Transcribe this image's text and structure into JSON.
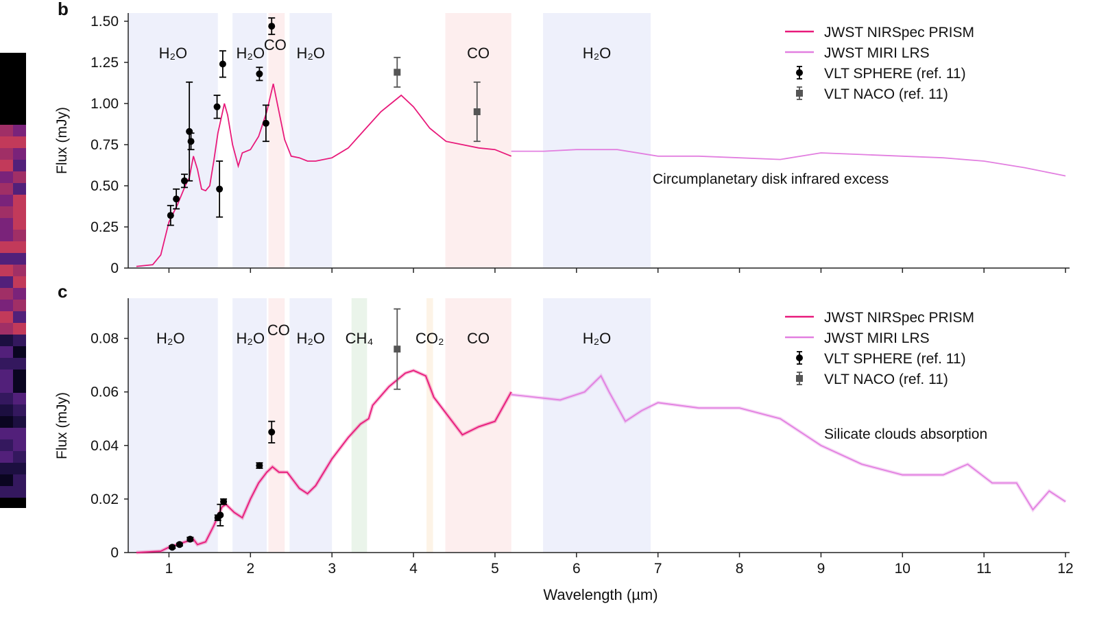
{
  "axis_label_x": "Wavelength (µm)",
  "colors": {
    "nirspec": "#e8197a",
    "miri": "#e27fe0",
    "sphere": "#000000",
    "naco": "#555555",
    "H2O": "#eef0fb",
    "CO": "#fdeeee",
    "CH4": "#eaf4ea",
    "CO2": "#fdf3e6"
  },
  "chart_data": [
    {
      "type": "line",
      "panel_label": "b",
      "ylabel": "Flux (mJy)",
      "xlim": [
        0.5,
        12.05
      ],
      "ylim": [
        0,
        1.55
      ],
      "xticks": [
        1,
        2,
        3,
        4,
        5,
        6,
        7,
        8,
        9,
        10,
        11,
        12
      ],
      "yticks": [
        0,
        0.25,
        0.5,
        0.75,
        1.0,
        1.25,
        1.5
      ],
      "ytick_labels": [
        "0",
        "0.25",
        "0.50",
        "0.75",
        "1.00",
        "1.25",
        "1.50"
      ],
      "show_xtick_labels": false,
      "bands": [
        {
          "species": "H2O",
          "label": "H₂O",
          "range": [
            0.5,
            1.6
          ]
        },
        {
          "species": "H2O",
          "label": "H₂O",
          "range": [
            1.78,
            2.2
          ]
        },
        {
          "species": "CO",
          "label": "CO",
          "range": [
            2.22,
            2.42
          ]
        },
        {
          "species": "H2O",
          "label": "H₂O",
          "range": [
            2.48,
            3.0
          ]
        },
        {
          "species": "CO",
          "label": "CO",
          "range": [
            4.39,
            5.2
          ]
        },
        {
          "species": "H2O",
          "label": "H₂O",
          "range": [
            5.59,
            6.91
          ]
        }
      ],
      "annotation": "Circumplanetary disk infrared excess",
      "legend": {
        "placement": "top-right",
        "entries": [
          "JWST NIRSpec PRISM",
          "JWST MIRI LRS",
          "VLT SPHERE (ref. 11)",
          "VLT NACO (ref. 11)"
        ]
      },
      "series": [
        {
          "name": "JWST NIRSpec PRISM",
          "kind": "line",
          "points": [
            [
              0.6,
              0.01
            ],
            [
              0.8,
              0.02
            ],
            [
              0.9,
              0.08
            ],
            [
              1.0,
              0.28
            ],
            [
              1.1,
              0.38
            ],
            [
              1.2,
              0.5
            ],
            [
              1.25,
              0.55
            ],
            [
              1.3,
              0.68
            ],
            [
              1.35,
              0.6
            ],
            [
              1.4,
              0.48
            ],
            [
              1.45,
              0.47
            ],
            [
              1.5,
              0.5
            ],
            [
              1.55,
              0.65
            ],
            [
              1.6,
              0.82
            ],
            [
              1.68,
              1.0
            ],
            [
              1.72,
              0.93
            ],
            [
              1.78,
              0.75
            ],
            [
              1.85,
              0.62
            ],
            [
              1.9,
              0.7
            ],
            [
              2.0,
              0.72
            ],
            [
              2.1,
              0.8
            ],
            [
              2.2,
              0.95
            ],
            [
              2.28,
              1.12
            ],
            [
              2.35,
              0.95
            ],
            [
              2.42,
              0.78
            ],
            [
              2.5,
              0.68
            ],
            [
              2.6,
              0.67
            ],
            [
              2.7,
              0.65
            ],
            [
              2.8,
              0.65
            ],
            [
              3.0,
              0.67
            ],
            [
              3.2,
              0.73
            ],
            [
              3.4,
              0.84
            ],
            [
              3.6,
              0.95
            ],
            [
              3.85,
              1.05
            ],
            [
              4.0,
              0.98
            ],
            [
              4.2,
              0.85
            ],
            [
              4.4,
              0.77
            ],
            [
              4.6,
              0.75
            ],
            [
              4.8,
              0.73
            ],
            [
              5.0,
              0.72
            ],
            [
              5.2,
              0.68
            ]
          ]
        },
        {
          "name": "JWST MIRI LRS",
          "kind": "line",
          "points": [
            [
              5.2,
              0.71
            ],
            [
              5.6,
              0.71
            ],
            [
              6.0,
              0.72
            ],
            [
              6.5,
              0.72
            ],
            [
              7.0,
              0.68
            ],
            [
              7.5,
              0.68
            ],
            [
              8.0,
              0.67
            ],
            [
              8.5,
              0.66
            ],
            [
              9.0,
              0.7
            ],
            [
              9.5,
              0.69
            ],
            [
              10.0,
              0.68
            ],
            [
              10.5,
              0.67
            ],
            [
              11.0,
              0.65
            ],
            [
              11.5,
              0.61
            ],
            [
              12.0,
              0.56
            ]
          ]
        },
        {
          "name": "VLT SPHERE (ref. 11)",
          "kind": "errorbar",
          "marker": "circle",
          "points": [
            [
              1.02,
              0.32,
              0.06
            ],
            [
              1.09,
              0.42,
              0.06
            ],
            [
              1.19,
              0.53,
              0.04
            ],
            [
              1.25,
              0.83,
              0.3
            ],
            [
              1.27,
              0.77,
              0.05
            ],
            [
              1.59,
              0.98,
              0.07
            ],
            [
              1.62,
              0.48,
              0.17
            ],
            [
              1.66,
              1.24,
              0.08
            ],
            [
              2.11,
              1.18,
              0.04
            ],
            [
              2.19,
              0.88,
              0.11
            ],
            [
              2.26,
              1.47,
              0.05
            ]
          ]
        },
        {
          "name": "VLT NACO (ref. 11)",
          "kind": "errorbar",
          "marker": "square",
          "points": [
            [
              3.8,
              1.19,
              0.09
            ],
            [
              4.78,
              0.95,
              0.18
            ]
          ]
        }
      ]
    },
    {
      "type": "line",
      "panel_label": "c",
      "ylabel": "Flux (mJy)",
      "xlabel": "Wavelength (µm)",
      "xlim": [
        0.5,
        12.05
      ],
      "ylim": [
        0,
        0.095
      ],
      "xticks": [
        1,
        2,
        3,
        4,
        5,
        6,
        7,
        8,
        9,
        10,
        11,
        12
      ],
      "yticks": [
        0,
        0.02,
        0.04,
        0.06,
        0.08
      ],
      "ytick_labels": [
        "0",
        "0.02",
        "0.04",
        "0.06",
        "0.08"
      ],
      "show_xtick_labels": true,
      "bands": [
        {
          "species": "H2O",
          "label": "H₂O",
          "range": [
            0.5,
            1.6
          ]
        },
        {
          "species": "H2O",
          "label": "H₂O",
          "range": [
            1.78,
            2.2
          ]
        },
        {
          "species": "CO",
          "label": "CO",
          "range": [
            2.22,
            2.42
          ]
        },
        {
          "species": "H2O",
          "label": "H₂O",
          "range": [
            2.48,
            3.0
          ]
        },
        {
          "species": "CH4",
          "label": "CH₄",
          "range": [
            3.24,
            3.43
          ]
        },
        {
          "species": "CO2",
          "label": "CO₂",
          "range": [
            4.16,
            4.24
          ]
        },
        {
          "species": "CO",
          "label": "CO",
          "range": [
            4.39,
            5.2
          ]
        },
        {
          "species": "H2O",
          "label": "H₂O",
          "range": [
            5.59,
            6.91
          ]
        }
      ],
      "annotation": "Silicate clouds absorption",
      "legend": {
        "placement": "top-right",
        "entries": [
          "JWST NIRSpec PRISM",
          "JWST MIRI LRS",
          "VLT SPHERE (ref. 11)",
          "VLT NACO (ref. 11)"
        ]
      },
      "series": [
        {
          "name": "JWST NIRSpec PRISM",
          "kind": "line",
          "points": [
            [
              0.6,
              0
            ],
            [
              0.9,
              0.0005
            ],
            [
              1.0,
              0.002
            ],
            [
              1.2,
              0.004
            ],
            [
              1.3,
              0.005
            ],
            [
              1.35,
              0.003
            ],
            [
              1.45,
              0.004
            ],
            [
              1.55,
              0.01
            ],
            [
              1.65,
              0.017
            ],
            [
              1.7,
              0.018
            ],
            [
              1.8,
              0.015
            ],
            [
              1.9,
              0.013
            ],
            [
              2.0,
              0.02
            ],
            [
              2.1,
              0.026
            ],
            [
              2.2,
              0.03
            ],
            [
              2.27,
              0.032
            ],
            [
              2.35,
              0.03
            ],
            [
              2.45,
              0.03
            ],
            [
              2.55,
              0.026
            ],
            [
              2.6,
              0.024
            ],
            [
              2.7,
              0.022
            ],
            [
              2.8,
              0.025
            ],
            [
              3.0,
              0.035
            ],
            [
              3.2,
              0.043
            ],
            [
              3.35,
              0.048
            ],
            [
              3.45,
              0.05
            ],
            [
              3.5,
              0.055
            ],
            [
              3.7,
              0.062
            ],
            [
              3.9,
              0.067
            ],
            [
              4.0,
              0.068
            ],
            [
              4.15,
              0.066
            ],
            [
              4.25,
              0.058
            ],
            [
              4.4,
              0.052
            ],
            [
              4.6,
              0.044
            ],
            [
              4.8,
              0.047
            ],
            [
              5.0,
              0.049
            ],
            [
              5.2,
              0.06
            ]
          ]
        },
        {
          "name": "JWST MIRI LRS",
          "kind": "line",
          "points": [
            [
              5.2,
              0.059
            ],
            [
              5.5,
              0.058
            ],
            [
              5.8,
              0.057
            ],
            [
              6.1,
              0.06
            ],
            [
              6.3,
              0.066
            ],
            [
              6.4,
              0.06
            ],
            [
              6.6,
              0.049
            ],
            [
              6.8,
              0.053
            ],
            [
              7.0,
              0.056
            ],
            [
              7.5,
              0.054
            ],
            [
              8.0,
              0.054
            ],
            [
              8.5,
              0.05
            ],
            [
              9.0,
              0.04
            ],
            [
              9.5,
              0.033
            ],
            [
              10.0,
              0.029
            ],
            [
              10.5,
              0.029
            ],
            [
              10.8,
              0.033
            ],
            [
              11.1,
              0.026
            ],
            [
              11.4,
              0.026
            ],
            [
              11.6,
              0.016
            ],
            [
              11.8,
              0.023
            ],
            [
              12.0,
              0.019
            ]
          ]
        },
        {
          "name": "VLT SPHERE (ref. 11)",
          "kind": "errorbar",
          "marker": "circle",
          "points": [
            [
              1.04,
              0.002,
              0.0005
            ],
            [
              1.13,
              0.003,
              0.0005
            ],
            [
              1.26,
              0.005,
              0.0007
            ],
            [
              1.6,
              0.013,
              0.001
            ],
            [
              1.63,
              0.014,
              0.004
            ],
            [
              1.67,
              0.019,
              0.001
            ],
            [
              2.11,
              0.0325,
              0.001
            ],
            [
              2.26,
              0.045,
              0.004
            ]
          ]
        },
        {
          "name": "VLT NACO (ref. 11)",
          "kind": "errorbar",
          "marker": "square",
          "points": [
            [
              3.8,
              0.076,
              0.015
            ]
          ]
        }
      ]
    }
  ]
}
